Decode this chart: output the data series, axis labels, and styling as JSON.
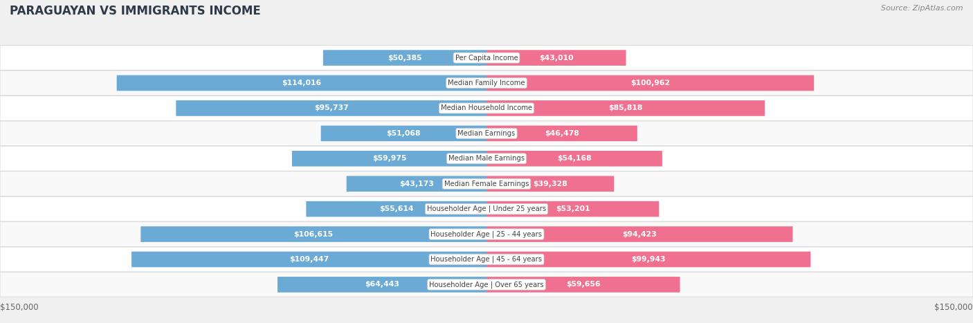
{
  "title": "PARAGUAYAN VS IMMIGRANTS INCOME",
  "source": "Source: ZipAtlas.com",
  "categories": [
    "Per Capita Income",
    "Median Family Income",
    "Median Household Income",
    "Median Earnings",
    "Median Male Earnings",
    "Median Female Earnings",
    "Householder Age | Under 25 years",
    "Householder Age | 25 - 44 years",
    "Householder Age | 45 - 64 years",
    "Householder Age | Over 65 years"
  ],
  "paraguayan": [
    50385,
    114016,
    95737,
    51068,
    59975,
    43173,
    55614,
    106615,
    109447,
    64443
  ],
  "immigrants": [
    43010,
    100962,
    85818,
    46478,
    54168,
    39328,
    53201,
    94423,
    99943,
    59656
  ],
  "max_val": 150000,
  "bar_color_paraguayan_light": "#aec9e8",
  "bar_color_paraguayan_dark": "#6aaad4",
  "bar_color_immigrants_light": "#f4afc5",
  "bar_color_immigrants_dark": "#f07090",
  "label_color_inside": "#ffffff",
  "label_color_outside": "#555555",
  "bg_color": "#f0f0f0",
  "row_bg_even": "#f9f9f9",
  "row_bg_odd": "#ffffff",
  "title_color": "#2d3a4a",
  "center_label_bg": "#ffffff",
  "center_label_edge": "#cccccc",
  "axis_label_color": "#666666",
  "legend_paraguayan_color": "#6aaad4",
  "legend_immigrants_color": "#f07090",
  "inside_label_threshold": 37500
}
